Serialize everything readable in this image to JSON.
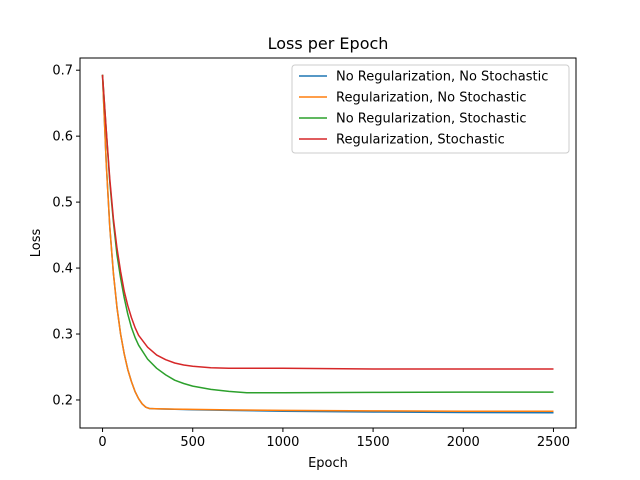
{
  "chart_data": {
    "type": "line",
    "title": "Loss per Epoch",
    "xlabel": "Epoch",
    "ylabel": "Loss",
    "xlim": [
      -125,
      2625
    ],
    "ylim": [
      0.1575,
      0.7185
    ],
    "xticks": [
      0,
      500,
      1000,
      1500,
      2000,
      2500
    ],
    "yticks": [
      0.2,
      0.3,
      0.4,
      0.5,
      0.6,
      0.7
    ],
    "grid": false,
    "legend_position": "top-right",
    "series": [
      {
        "name": "No Regularization, No Stochastic",
        "color": "#1f77b4",
        "x": [
          0,
          20,
          40,
          60,
          80,
          100,
          120,
          140,
          160,
          180,
          200,
          220,
          240,
          260,
          300,
          400,
          500,
          700,
          1000,
          1500,
          2000,
          2500
        ],
        "y": [
          0.693,
          0.56,
          0.462,
          0.392,
          0.34,
          0.3,
          0.27,
          0.246,
          0.228,
          0.213,
          0.202,
          0.194,
          0.189,
          0.187,
          0.1865,
          0.1858,
          0.1852,
          0.1842,
          0.183,
          0.1818,
          0.181,
          0.1805
        ]
      },
      {
        "name": "Regularization, No Stochastic",
        "color": "#ff7f0e",
        "x": [
          0,
          20,
          40,
          60,
          80,
          100,
          120,
          140,
          160,
          180,
          200,
          220,
          240,
          260,
          300,
          400,
          500,
          700,
          1000,
          1500,
          2000,
          2500
        ],
        "y": [
          0.693,
          0.56,
          0.462,
          0.392,
          0.34,
          0.3,
          0.27,
          0.246,
          0.228,
          0.213,
          0.202,
          0.194,
          0.189,
          0.187,
          0.1868,
          0.1862,
          0.1857,
          0.185,
          0.1842,
          0.1835,
          0.183,
          0.1828
        ]
      },
      {
        "name": "No Regularization, Stochastic",
        "color": "#2ca02c",
        "x": [
          0,
          20,
          40,
          60,
          80,
          100,
          120,
          140,
          160,
          180,
          200,
          250,
          300,
          350,
          400,
          450,
          500,
          600,
          700,
          800,
          1000,
          1500,
          2000,
          2500
        ],
        "y": [
          0.693,
          0.61,
          0.53,
          0.47,
          0.42,
          0.385,
          0.355,
          0.33,
          0.31,
          0.295,
          0.283,
          0.262,
          0.248,
          0.238,
          0.23,
          0.225,
          0.221,
          0.216,
          0.213,
          0.211,
          0.211,
          0.2115,
          0.212,
          0.212
        ]
      },
      {
        "name": "Regularization, Stochastic",
        "color": "#d62728",
        "x": [
          0,
          20,
          40,
          60,
          80,
          100,
          120,
          140,
          160,
          180,
          200,
          250,
          300,
          350,
          400,
          450,
          500,
          600,
          700,
          800,
          1000,
          1500,
          2000,
          2500
        ],
        "y": [
          0.693,
          0.61,
          0.535,
          0.475,
          0.43,
          0.395,
          0.365,
          0.343,
          0.325,
          0.31,
          0.298,
          0.28,
          0.268,
          0.261,
          0.256,
          0.253,
          0.251,
          0.249,
          0.248,
          0.248,
          0.248,
          0.247,
          0.247,
          0.247
        ]
      }
    ]
  }
}
